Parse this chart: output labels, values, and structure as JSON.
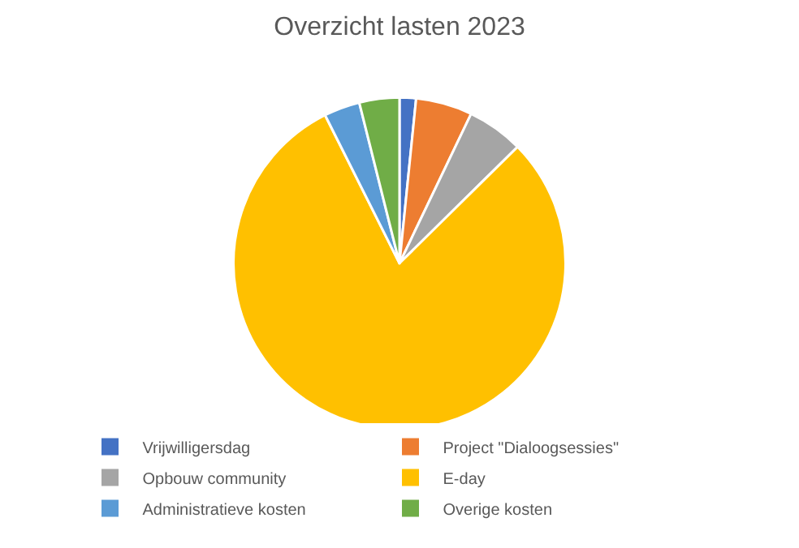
{
  "chart_data": {
    "type": "pie",
    "title": "Overzicht lasten 2023",
    "categories": [
      "Vrijwilligersdag",
      "Project \"Dialoogsessies\"",
      "Opbouw community",
      "E-day",
      "Administratieve kosten",
      "Overige kosten"
    ],
    "values": [
      1.6,
      5.5,
      5.5,
      80,
      3.5,
      3.9
    ],
    "colors": [
      "#4472c4",
      "#ed7d31",
      "#a5a5a5",
      "#ffc000",
      "#5b9bd5",
      "#70ad47"
    ],
    "legend": "bottom"
  }
}
